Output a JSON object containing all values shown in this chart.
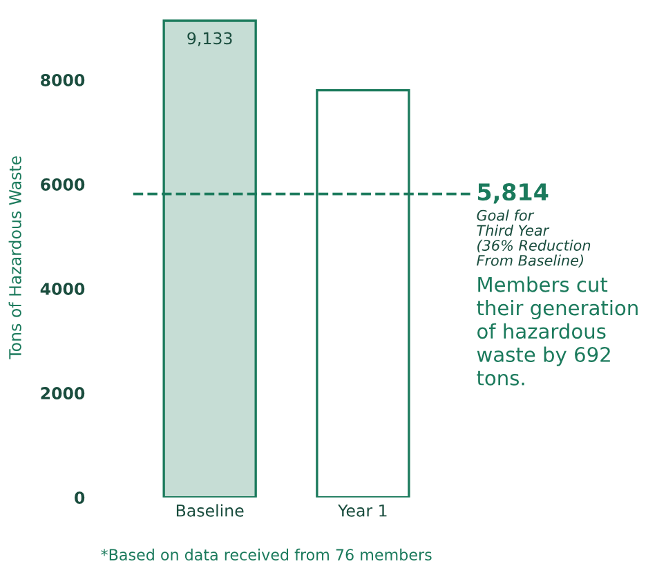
{
  "chart_data": {
    "type": "bar",
    "categories": [
      "Baseline",
      "Year 1"
    ],
    "values": [
      9133,
      7800
    ],
    "value_labels": [
      "9,133",
      null
    ],
    "colors": [
      "#c6ddd5",
      "#ffffff"
    ],
    "ylabel": "Tons of Hazardous Waste",
    "ylim": [
      0,
      9200
    ],
    "yticks": [
      0,
      2000,
      4000,
      6000,
      8000
    ],
    "grid": false,
    "ref_lines": [
      {
        "axis": "y",
        "value": 5814,
        "label": "5,814",
        "color": "#1b7a5c",
        "line_style": "dashed"
      }
    ],
    "annotations": [
      "Goal for\nThird Year\n(36% Reduction\nFrom Baseline)",
      "Members cut\ntheir generation\nof hazardous\nwaste by 692\ntons.",
      "*Based on data received from 76 members"
    ]
  }
}
